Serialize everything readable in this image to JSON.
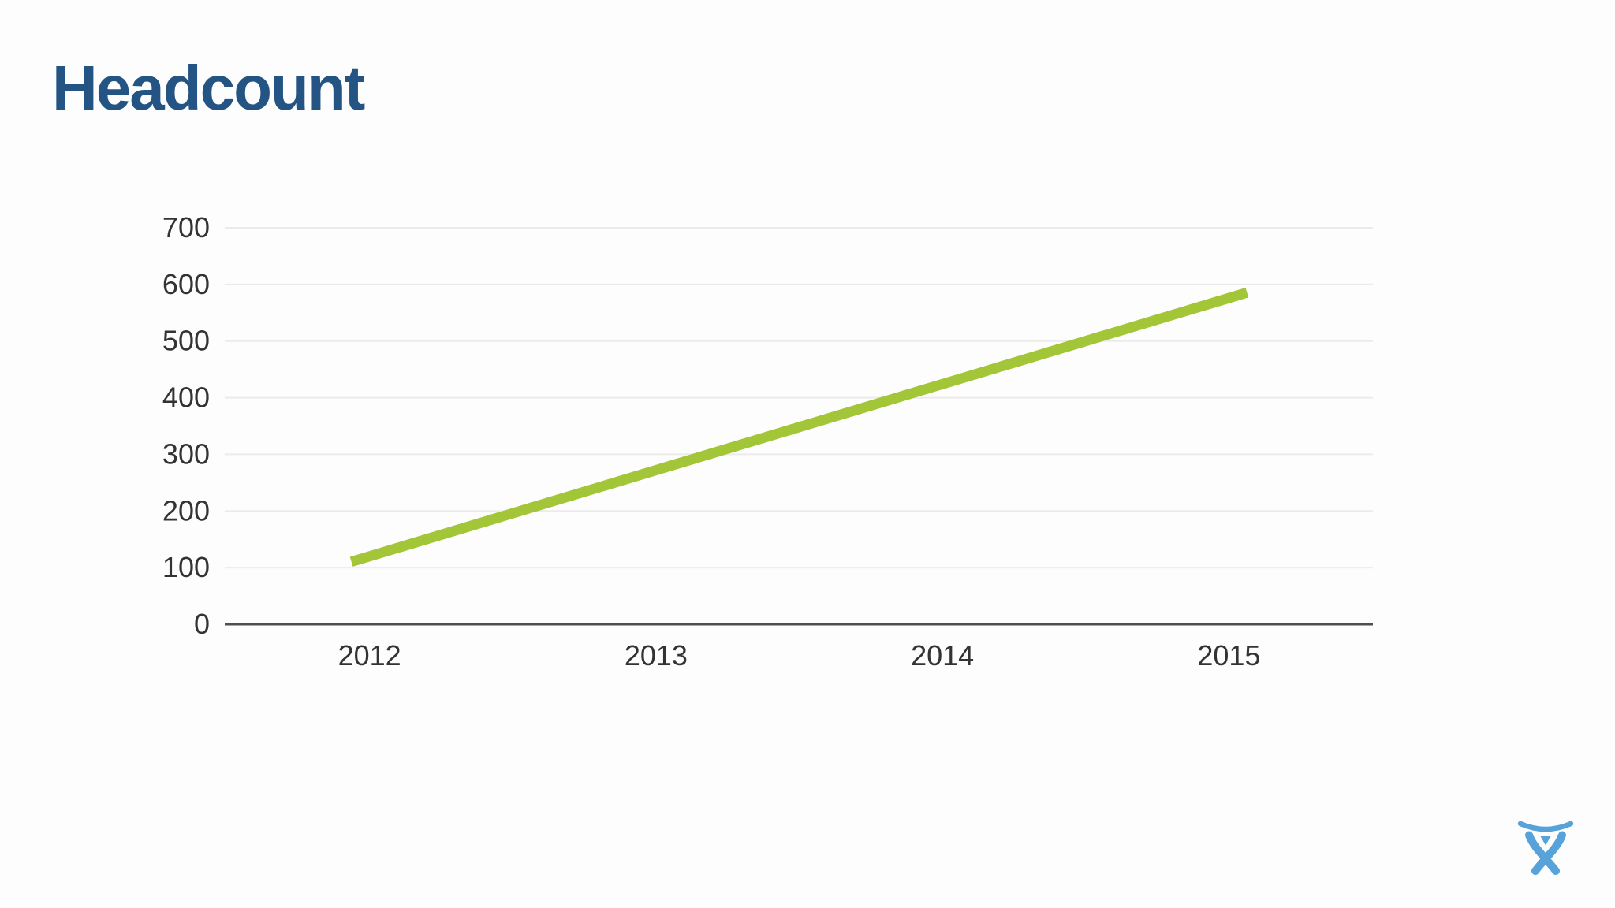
{
  "slide": {
    "title": "Headcount"
  },
  "chart_data": {
    "type": "line",
    "title": "Headcount",
    "xlabel": "",
    "ylabel": "",
    "categories": [
      "2012",
      "2013",
      "2014",
      "2015"
    ],
    "series": [
      {
        "name": "Headcount",
        "values": [
          120,
          272,
          424,
          576
        ]
      }
    ],
    "ylim": [
      0,
      700
    ],
    "yticks": [
      0,
      100,
      200,
      300,
      400,
      500,
      600,
      700
    ],
    "grid": "horizontal-gridlines",
    "legend_position": "none",
    "line_color": "#a2c637",
    "axis_color": "#4f4f4f",
    "gridline_color": "#ebebeb",
    "tick_label_color": "#333333"
  },
  "branding": {
    "logo_name": "atlassian-logo",
    "logo_color": "#57a2d8"
  },
  "colors": {
    "title": "#245484",
    "background": "#fdfdfe"
  }
}
